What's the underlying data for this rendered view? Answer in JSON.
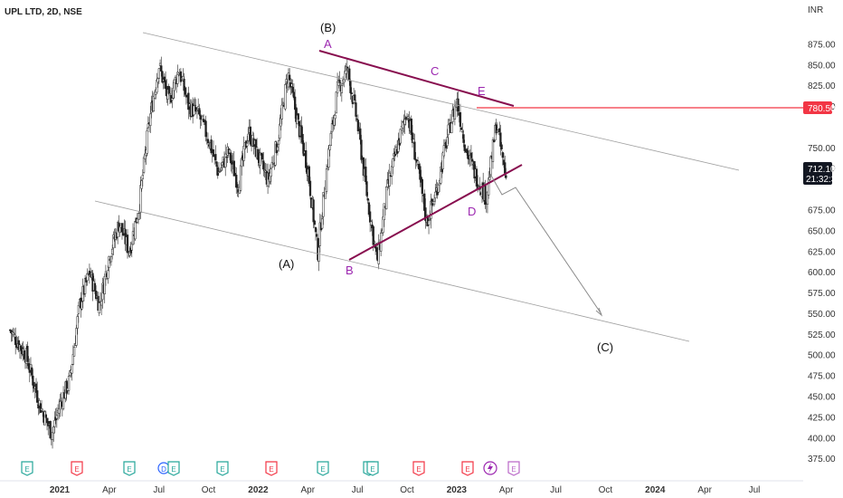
{
  "chart_data": {
    "type": "candlestick",
    "title": "UPL LTD, 2D, NSE",
    "currency": "INR",
    "x_ticks": [
      "2021",
      "Apr",
      "Jul",
      "Oct",
      "2022",
      "Apr",
      "Jul",
      "Oct",
      "2023",
      "Apr",
      "Jul",
      "Oct",
      "2024",
      "Apr",
      "Jul"
    ],
    "y_ticks": [
      "375.00",
      "400.00",
      "425.00",
      "450.00",
      "475.00",
      "500.00",
      "525.00",
      "550.00",
      "575.00",
      "600.00",
      "625.00",
      "650.00",
      "675.00",
      "700.00",
      "725.00",
      "750.00",
      "775.00",
      "800.00",
      "825.00",
      "850.00",
      "875.00"
    ],
    "ylim": [
      367,
      900
    ],
    "price_tags": {
      "resistance": {
        "value": "780.50",
        "color": "#f23645"
      },
      "last": {
        "value": "712.10",
        "countdown": "21:32:33",
        "color": "#131722"
      }
    },
    "wave_labels": {
      "B_major": "(B)",
      "A_major": "(A)",
      "C_major": "(C)",
      "a": "A",
      "b": "B",
      "c": "C",
      "d": "D",
      "e": "E"
    },
    "event_markers": [
      "E",
      "E",
      "E",
      "D",
      "E",
      "E",
      "E",
      "E",
      "E",
      "E",
      "E",
      "E"
    ],
    "price_path": [
      [
        2020.75,
        530
      ],
      [
        2020.83,
        500
      ],
      [
        2020.9,
        440
      ],
      [
        2020.96,
        405
      ],
      [
        2021.0,
        440
      ],
      [
        2021.05,
        470
      ],
      [
        2021.1,
        560
      ],
      [
        2021.15,
        600
      ],
      [
        2021.2,
        560
      ],
      [
        2021.25,
        620
      ],
      [
        2021.3,
        660
      ],
      [
        2021.35,
        625
      ],
      [
        2021.4,
        680
      ],
      [
        2021.45,
        780
      ],
      [
        2021.5,
        850
      ],
      [
        2021.55,
        805
      ],
      [
        2021.6,
        845
      ],
      [
        2021.65,
        800
      ],
      [
        2021.7,
        790
      ],
      [
        2021.75,
        760
      ],
      [
        2021.8,
        720
      ],
      [
        2021.85,
        745
      ],
      [
        2021.9,
        705
      ],
      [
        2021.95,
        770
      ],
      [
        2022.0,
        740
      ],
      [
        2022.05,
        710
      ],
      [
        2022.1,
        760
      ],
      [
        2022.15,
        840
      ],
      [
        2022.2,
        780
      ],
      [
        2022.25,
        725
      ],
      [
        2022.3,
        623
      ],
      [
        2022.35,
        735
      ],
      [
        2022.4,
        820
      ],
      [
        2022.45,
        845
      ],
      [
        2022.5,
        780
      ],
      [
        2022.55,
        690
      ],
      [
        2022.6,
        612
      ],
      [
        2022.65,
        700
      ],
      [
        2022.7,
        750
      ],
      [
        2022.75,
        795
      ],
      [
        2022.8,
        730
      ],
      [
        2022.85,
        660
      ],
      [
        2022.9,
        700
      ],
      [
        2022.95,
        760
      ],
      [
        2023.0,
        808
      ],
      [
        2023.05,
        745
      ],
      [
        2023.1,
        715
      ],
      [
        2023.15,
        690
      ],
      [
        2023.2,
        780
      ],
      [
        2023.25,
        712
      ]
    ]
  }
}
